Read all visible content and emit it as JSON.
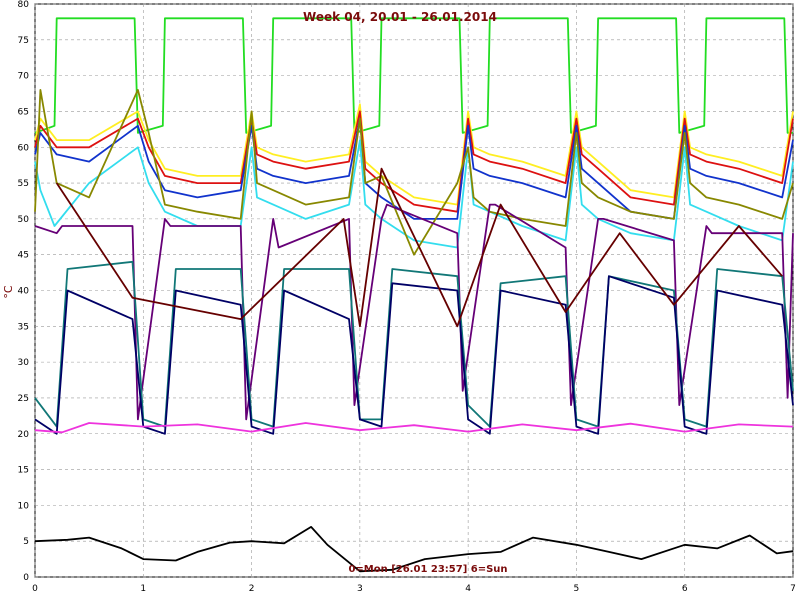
{
  "chart_data": {
    "type": "line",
    "title": "Week 04, 20.01 - 26.01.2014",
    "ylabel": "°C",
    "xlabel": "0=Mon [26.01 23:57] 6=Sun",
    "xlim": [
      0,
      7
    ],
    "ylim": [
      0,
      80
    ],
    "xticks": [
      "0",
      "1",
      "2",
      "3",
      "4",
      "5",
      "6",
      "7"
    ],
    "yticks": [
      "0",
      "5",
      "10",
      "15",
      "20",
      "25",
      "30",
      "35",
      "40",
      "45",
      "50",
      "55",
      "60",
      "65",
      "70",
      "75",
      "80"
    ],
    "grid": true,
    "colors": {
      "green": "#22dd22",
      "yellow": "#ffee22",
      "red": "#dd1111",
      "blue": "#1133cc",
      "cyan": "#33ddee",
      "olive": "#888800",
      "purple": "#660077",
      "teal": "#117777",
      "navy": "#000066",
      "maroon": "#660000",
      "magenta": "#ee33dd",
      "black": "#000000"
    },
    "series": [
      {
        "color": "green",
        "x": [
          0,
          0.18,
          0.2,
          0.92,
          0.95,
          1.18,
          1.2,
          1.92,
          1.95,
          2.18,
          2.2,
          2.92,
          2.95,
          3.18,
          3.2,
          3.92,
          3.95,
          4.18,
          4.2,
          4.92,
          4.95,
          5.18,
          5.2,
          5.92,
          5.95,
          6.18,
          6.2,
          6.92,
          6.95,
          7
        ],
        "y": [
          62,
          63,
          78,
          78,
          62,
          63,
          78,
          78,
          62,
          63,
          78,
          78,
          62,
          63,
          78,
          78,
          62,
          63,
          78,
          78,
          62,
          63,
          78,
          78,
          62,
          63,
          78,
          78,
          62,
          62
        ]
      },
      {
        "color": "yellow",
        "x": [
          0,
          0.05,
          0.2,
          0.5,
          0.95,
          1.05,
          1.2,
          1.5,
          1.9,
          2.0,
          2.05,
          2.2,
          2.5,
          2.9,
          3.0,
          3.05,
          3.2,
          3.5,
          3.9,
          4.0,
          4.05,
          4.2,
          4.5,
          4.9,
          5.0,
          5.05,
          5.2,
          5.5,
          5.9,
          6.0,
          6.05,
          6.2,
          6.5,
          6.9,
          7
        ],
        "y": [
          61,
          64,
          61,
          61,
          65,
          61,
          57,
          56,
          56,
          65,
          60,
          59,
          58,
          59,
          66,
          58,
          56,
          53,
          52,
          65,
          60,
          59,
          58,
          56,
          65,
          60,
          58,
          54,
          53,
          65,
          60,
          59,
          58,
          56,
          65
        ]
      },
      {
        "color": "red",
        "x": [
          0,
          0.05,
          0.2,
          0.5,
          0.95,
          1.05,
          1.2,
          1.5,
          1.9,
          2.0,
          2.05,
          2.2,
          2.5,
          2.9,
          3.0,
          3.05,
          3.2,
          3.5,
          3.9,
          4.0,
          4.05,
          4.2,
          4.5,
          4.9,
          5.0,
          5.05,
          5.2,
          5.5,
          5.9,
          6.0,
          6.05,
          6.2,
          6.5,
          6.9,
          7
        ],
        "y": [
          60,
          63,
          60,
          60,
          64,
          60,
          56,
          55,
          55,
          64,
          59,
          58,
          57,
          58,
          65,
          57,
          55,
          52,
          51,
          64,
          59,
          58,
          57,
          55,
          64,
          59,
          57,
          53,
          52,
          64,
          59,
          58,
          57,
          55,
          64
        ]
      },
      {
        "color": "blue",
        "x": [
          0,
          0.05,
          0.2,
          0.5,
          0.95,
          1.05,
          1.2,
          1.5,
          1.9,
          2.0,
          2.05,
          2.2,
          2.5,
          2.9,
          3.0,
          3.05,
          3.2,
          3.5,
          3.9,
          4.0,
          4.05,
          4.2,
          4.5,
          4.9,
          5.0,
          5.05,
          5.2,
          5.5,
          5.9,
          6.0,
          6.05,
          6.2,
          6.5,
          6.9,
          7
        ],
        "y": [
          59,
          62,
          59,
          58,
          63,
          58,
          54,
          53,
          54,
          63,
          57,
          56,
          55,
          56,
          64,
          55,
          53,
          50,
          50,
          63,
          57,
          56,
          55,
          53,
          63,
          57,
          55,
          51,
          50,
          63,
          57,
          56,
          55,
          53,
          61
        ]
      },
      {
        "color": "cyan",
        "x": [
          0,
          0.05,
          0.18,
          0.5,
          0.95,
          1.05,
          1.2,
          1.5,
          1.9,
          2.0,
          2.05,
          2.2,
          2.5,
          2.9,
          3.0,
          3.05,
          3.2,
          3.5,
          3.9,
          4.0,
          4.05,
          4.2,
          4.5,
          4.9,
          5.0,
          5.05,
          5.2,
          5.5,
          5.9,
          6.0,
          6.05,
          6.2,
          6.5,
          6.9,
          7
        ],
        "y": [
          58,
          54,
          49,
          55,
          60,
          55,
          51,
          49,
          49,
          60,
          53,
          52,
          50,
          52,
          61,
          52,
          50,
          47,
          46,
          60,
          52,
          51,
          49,
          47,
          60,
          52,
          50,
          48,
          47,
          60,
          52,
          51,
          49,
          47,
          58
        ]
      },
      {
        "color": "olive",
        "x": [
          0,
          0.05,
          0.2,
          0.5,
          0.95,
          1.05,
          1.2,
          1.5,
          1.9,
          2.0,
          2.05,
          2.2,
          2.5,
          2.9,
          3.0,
          3.05,
          3.2,
          3.5,
          3.9,
          4.0,
          4.05,
          4.2,
          4.5,
          4.9,
          5.0,
          5.05,
          5.2,
          5.5,
          5.9,
          6.0,
          6.05,
          6.2,
          6.5,
          6.9,
          7
        ],
        "y": [
          51,
          68,
          55,
          53,
          68,
          62,
          52,
          51,
          50,
          65,
          55,
          54,
          52,
          53,
          64,
          55,
          56,
          45,
          55,
          60,
          53,
          51,
          50,
          49,
          62,
          55,
          53,
          51,
          50,
          62,
          55,
          53,
          52,
          50,
          55
        ]
      },
      {
        "color": "purple",
        "x": [
          0,
          0.2,
          0.25,
          0.9,
          0.95,
          1.2,
          1.25,
          1.9,
          1.95,
          2.2,
          2.25,
          2.9,
          2.95,
          3.2,
          3.25,
          3.9,
          3.95,
          4.2,
          4.25,
          4.9,
          4.95,
          5.2,
          5.25,
          5.9,
          5.95,
          6.2,
          6.25,
          6.9,
          6.95,
          7
        ],
        "y": [
          49,
          48,
          49,
          49,
          22,
          50,
          49,
          49,
          22,
          50,
          46,
          50,
          24,
          50,
          52,
          48,
          26,
          52,
          52,
          46,
          24,
          50,
          50,
          47,
          24,
          49,
          48,
          48,
          25,
          48
        ]
      },
      {
        "color": "teal",
        "x": [
          0,
          0.2,
          0.3,
          0.9,
          1.0,
          1.2,
          1.3,
          1.9,
          2.0,
          2.2,
          2.3,
          2.9,
          3.0,
          3.2,
          3.3,
          3.9,
          4.0,
          4.2,
          4.3,
          4.9,
          5.0,
          5.2,
          5.3,
          5.9,
          6.0,
          6.2,
          6.3,
          6.9,
          7
        ],
        "y": [
          25,
          21,
          43,
          44,
          22,
          21,
          43,
          43,
          22,
          21,
          43,
          43,
          22,
          22,
          43,
          42,
          24,
          21,
          41,
          42,
          22,
          21,
          42,
          40,
          22,
          21,
          43,
          42,
          26
        ]
      },
      {
        "color": "navy",
        "x": [
          0,
          0.2,
          0.3,
          0.9,
          1.0,
          1.2,
          1.3,
          1.9,
          2.0,
          2.2,
          2.3,
          2.9,
          3.0,
          3.2,
          3.3,
          3.9,
          4.0,
          4.2,
          4.3,
          4.9,
          5.0,
          5.2,
          5.3,
          5.9,
          6.0,
          6.2,
          6.3,
          6.9,
          7
        ],
        "y": [
          22,
          20,
          40,
          36,
          21,
          20,
          40,
          38,
          21,
          20,
          40,
          36,
          22,
          21,
          41,
          40,
          22,
          20,
          40,
          38,
          21,
          20,
          42,
          39,
          21,
          20,
          40,
          38,
          24
        ]
      },
      {
        "color": "maroon",
        "x": [
          0.2,
          0.9,
          1.9,
          2.85,
          3.0,
          3.2,
          3.9,
          4.3,
          4.9,
          5.4,
          5.9,
          6.5,
          6.9
        ],
        "y": [
          55,
          39,
          36,
          50,
          35,
          57,
          35,
          52,
          37,
          48,
          38,
          49,
          42
        ]
      },
      {
        "color": "magenta",
        "x": [
          0,
          0.25,
          0.5,
          1.0,
          1.5,
          2.0,
          2.5,
          3.0,
          3.5,
          4.0,
          4.5,
          5.0,
          5.5,
          6.0,
          6.5,
          7
        ],
        "y": [
          20.5,
          20.2,
          21.5,
          21,
          21.3,
          20.3,
          21.5,
          20.5,
          21.2,
          20.3,
          21.3,
          20.5,
          21.4,
          20.3,
          21.3,
          21
        ]
      },
      {
        "color": "black",
        "x": [
          0,
          0.3,
          0.5,
          0.8,
          1.0,
          1.3,
          1.5,
          1.8,
          2.0,
          2.3,
          2.55,
          2.7,
          3.0,
          3.3,
          3.6,
          4.0,
          4.3,
          4.6,
          5.0,
          5.3,
          5.6,
          6.0,
          6.3,
          6.6,
          6.85,
          7
        ],
        "y": [
          5,
          5.2,
          5.5,
          4,
          2.5,
          2.3,
          3.5,
          4.8,
          5,
          4.7,
          7,
          4.5,
          0.8,
          1,
          2.5,
          3.2,
          3.5,
          5.5,
          4.5,
          3.5,
          2.5,
          4.5,
          4,
          5.8,
          3.3,
          3.6
        ]
      }
    ]
  }
}
